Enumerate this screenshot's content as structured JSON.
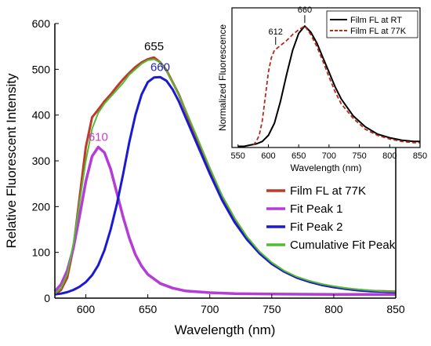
{
  "chart_data": [
    {
      "type": "line",
      "xlabel": "Wavelength (nm)",
      "ylabel": "Relative Fluorescent Intensity",
      "xlim": [
        575,
        850
      ],
      "ylim": [
        0,
        600
      ],
      "xticks": [
        "600",
        "650",
        "700",
        "750",
        "800",
        "850"
      ],
      "yticks": [
        "0",
        "100",
        "200",
        "300",
        "400",
        "500",
        "600"
      ],
      "annotations": [
        {
          "text": "655",
          "x": 655,
          "y": 528,
          "color": "#000000"
        },
        {
          "text": "660",
          "x": 660,
          "y": 483,
          "color": "#1f1fd6"
        },
        {
          "text": "610",
          "x": 610,
          "y": 330,
          "color": "#c83cc8"
        }
      ],
      "legend_position": "center-right",
      "series": [
        {
          "name": "Film FL at 77K",
          "color": "#c0392b",
          "x": [
            575,
            580,
            585,
            590,
            595,
            600,
            605,
            610,
            615,
            620,
            625,
            630,
            635,
            640,
            645,
            650,
            655,
            660,
            665,
            670,
            675,
            680,
            690,
            700,
            710,
            720,
            730,
            740,
            750,
            760,
            770,
            780,
            790,
            800,
            810,
            820,
            830,
            840,
            850
          ],
          "y": [
            8,
            18,
            45,
            110,
            220,
            330,
            395,
            412,
            430,
            445,
            462,
            478,
            492,
            505,
            515,
            522,
            526,
            515,
            498,
            472,
            445,
            412,
            345,
            280,
            220,
            172,
            132,
            100,
            76,
            58,
            45,
            36,
            29,
            24,
            21,
            18,
            16,
            15,
            14
          ]
        },
        {
          "name": "Fit Peak 1",
          "color": "#b53cd6",
          "x": [
            575,
            580,
            585,
            590,
            595,
            600,
            605,
            610,
            615,
            620,
            625,
            630,
            635,
            640,
            645,
            650,
            660,
            670,
            680,
            700,
            720,
            750,
            800,
            850
          ],
          "y": [
            15,
            30,
            60,
            110,
            180,
            255,
            310,
            330,
            318,
            282,
            230,
            178,
            132,
            95,
            70,
            52,
            32,
            22,
            16,
            12,
            10,
            9,
            8,
            8
          ]
        },
        {
          "name": "Fit Peak 2",
          "color": "#1a1ad0",
          "x": [
            575,
            580,
            585,
            590,
            595,
            600,
            605,
            610,
            615,
            620,
            625,
            630,
            635,
            640,
            645,
            650,
            655,
            660,
            665,
            670,
            675,
            680,
            690,
            700,
            710,
            720,
            730,
            740,
            750,
            760,
            770,
            780,
            790,
            800,
            810,
            820,
            830,
            840,
            850
          ],
          "y": [
            8,
            10,
            13,
            18,
            25,
            35,
            50,
            72,
            105,
            150,
            205,
            270,
            340,
            400,
            445,
            472,
            482,
            483,
            475,
            456,
            430,
            398,
            335,
            272,
            214,
            166,
            128,
            98,
            75,
            58,
            45,
            36,
            29,
            24,
            20,
            17,
            15,
            14,
            13
          ]
        },
        {
          "name": "Cumulative Fit Peak",
          "color": "#55bb33",
          "x": [
            575,
            580,
            585,
            590,
            595,
            600,
            605,
            610,
            615,
            620,
            625,
            630,
            635,
            640,
            645,
            650,
            655,
            660,
            665,
            670,
            675,
            680,
            690,
            700,
            710,
            720,
            730,
            740,
            750,
            760,
            770,
            780,
            790,
            800,
            810,
            820,
            830,
            840,
            850
          ],
          "y": [
            10,
            22,
            52,
            120,
            210,
            300,
            370,
            405,
            425,
            440,
            455,
            470,
            488,
            500,
            512,
            520,
            522,
            515,
            497,
            472,
            444,
            414,
            350,
            285,
            224,
            175,
            134,
            102,
            78,
            60,
            47,
            38,
            31,
            26,
            22,
            19,
            17,
            15,
            14
          ]
        }
      ]
    },
    {
      "type": "line",
      "xlabel": "Wavelength (nm)",
      "ylabel": "Normalized Fluorescence",
      "xlim": [
        540,
        850
      ],
      "ylim": [
        0,
        1.15
      ],
      "xticks": [
        "550",
        "600",
        "650",
        "700",
        "750",
        "800",
        "850"
      ],
      "annotations": [
        {
          "text": "612",
          "x": 612,
          "y": 0.82,
          "color": "#000000"
        },
        {
          "text": "660",
          "x": 660,
          "y": 1.0,
          "color": "#000000"
        }
      ],
      "legend_position": "top-right",
      "series": [
        {
          "name": "Film FL at RT",
          "color": "#000000",
          "dash": false,
          "x": [
            550,
            560,
            570,
            580,
            590,
            600,
            610,
            620,
            630,
            640,
            650,
            660,
            670,
            680,
            690,
            700,
            710,
            720,
            740,
            760,
            780,
            800,
            820,
            840,
            850
          ],
          "y": [
            0.01,
            0.01,
            0.02,
            0.03,
            0.05,
            0.1,
            0.2,
            0.38,
            0.6,
            0.8,
            0.94,
            1.0,
            0.95,
            0.86,
            0.74,
            0.62,
            0.5,
            0.4,
            0.26,
            0.17,
            0.11,
            0.08,
            0.06,
            0.05,
            0.05
          ]
        },
        {
          "name": "Film FL at 77K",
          "color": "#b52a1a",
          "dash": true,
          "x": [
            575,
            580,
            585,
            590,
            595,
            600,
            605,
            610,
            615,
            620,
            630,
            640,
            650,
            660,
            670,
            680,
            690,
            700,
            710,
            720,
            740,
            760,
            780,
            800,
            820,
            840,
            850
          ],
          "y": [
            0.02,
            0.05,
            0.1,
            0.22,
            0.42,
            0.62,
            0.74,
            0.8,
            0.82,
            0.84,
            0.88,
            0.93,
            0.97,
            1.0,
            0.93,
            0.83,
            0.71,
            0.58,
            0.46,
            0.36,
            0.24,
            0.15,
            0.1,
            0.07,
            0.05,
            0.04,
            0.04
          ]
        }
      ]
    }
  ]
}
